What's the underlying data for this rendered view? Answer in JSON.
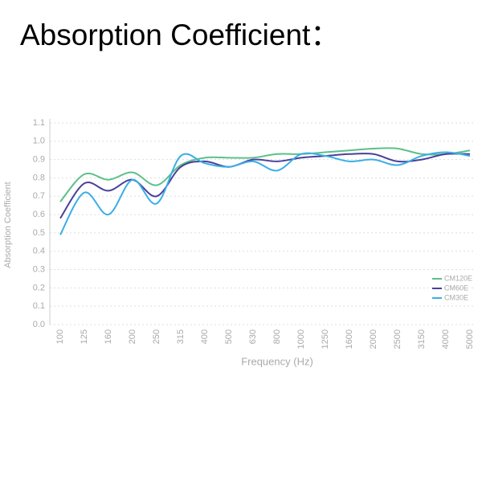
{
  "chart_data": {
    "type": "line",
    "title": "Absorption Coefficient：",
    "x_label": "Frequency (Hz)",
    "y_label": "Absorption Coefficient",
    "categories": [
      "100",
      "125",
      "160",
      "200",
      "250",
      "315",
      "400",
      "500",
      "630",
      "800",
      "1000",
      "1250",
      "1600",
      "2000",
      "2500",
      "3150",
      "4000",
      "5000"
    ],
    "series": [
      {
        "name": "CM120E",
        "color": "#5cc08a",
        "values": [
          0.67,
          0.82,
          0.79,
          0.83,
          0.76,
          0.87,
          0.91,
          0.91,
          0.91,
          0.93,
          0.93,
          0.94,
          0.95,
          0.96,
          0.96,
          0.93,
          0.93,
          0.95
        ]
      },
      {
        "name": "CM60E",
        "color": "#4a3f9a",
        "values": [
          0.58,
          0.77,
          0.73,
          0.79,
          0.7,
          0.86,
          0.89,
          0.86,
          0.9,
          0.89,
          0.91,
          0.92,
          0.93,
          0.93,
          0.89,
          0.9,
          0.93,
          0.93
        ]
      },
      {
        "name": "CM30E",
        "color": "#3aaee6",
        "values": [
          0.49,
          0.72,
          0.6,
          0.79,
          0.66,
          0.92,
          0.88,
          0.86,
          0.89,
          0.84,
          0.93,
          0.92,
          0.89,
          0.9,
          0.87,
          0.92,
          0.94,
          0.92
        ]
      }
    ],
    "ylim": [
      0,
      1.1
    ],
    "yticks": [
      {
        "value": 0,
        "label": "0.0"
      },
      0.1,
      0.2,
      0.3,
      0.4,
      0.5,
      0.6,
      0.7,
      0.8,
      0.9,
      {
        "value": 1,
        "label": "1.0"
      },
      1.1
    ],
    "grid": true,
    "legend": "lower-right"
  }
}
